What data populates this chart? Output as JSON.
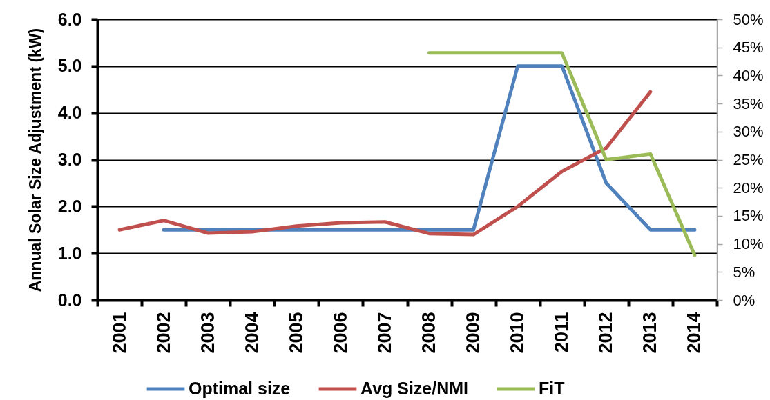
{
  "chart_data": {
    "type": "line",
    "ylabel": "Annual Solar Size Adjustment (kW)",
    "categories": [
      "2001",
      "2002",
      "2003",
      "2004",
      "2005",
      "2006",
      "2007",
      "2008",
      "2009",
      "2010",
      "2011",
      "2012",
      "2013",
      "2014"
    ],
    "series": [
      {
        "name": "Optimal size",
        "color": "#4f81bd",
        "values": [
          null,
          1.5,
          1.5,
          1.5,
          1.5,
          1.5,
          1.5,
          1.5,
          1.5,
          5.0,
          5.0,
          2.5,
          1.5,
          1.5
        ]
      },
      {
        "name": "Avg Size/NMI",
        "color": "#c0504d",
        "values": [
          1.5,
          1.7,
          1.43,
          1.46,
          1.58,
          1.65,
          1.67,
          1.42,
          1.4,
          2.0,
          2.75,
          3.25,
          4.45,
          null
        ]
      },
      {
        "name": "FiT",
        "color": "#9bbb59",
        "axis": "y2",
        "values": [
          null,
          null,
          null,
          null,
          null,
          null,
          null,
          44,
          44,
          44,
          44,
          25,
          26,
          8
        ]
      }
    ],
    "ylim": [
      0,
      6
    ],
    "yticks": [
      {
        "value": 0,
        "label": "0.0"
      },
      {
        "value": 1,
        "label": "1.0"
      },
      {
        "value": 2,
        "label": "2.0"
      },
      {
        "value": 3,
        "label": "3.0"
      },
      {
        "value": 4,
        "label": "4.0"
      },
      {
        "value": 5,
        "label": "5.0"
      },
      {
        "value": 6,
        "label": "6.0"
      }
    ],
    "y2lim": [
      0,
      50
    ],
    "y2ticks": [
      {
        "value": 0,
        "label": "0%"
      },
      {
        "value": 5,
        "label": "5%"
      },
      {
        "value": 10,
        "label": "10%"
      },
      {
        "value": 15,
        "label": "15%"
      },
      {
        "value": 20,
        "label": "20%"
      },
      {
        "value": 25,
        "label": "25%"
      },
      {
        "value": 30,
        "label": "30%"
      },
      {
        "value": 35,
        "label": "35%"
      },
      {
        "value": 40,
        "label": "40%"
      },
      {
        "value": 45,
        "label": "45%"
      },
      {
        "value": 50,
        "label": "50%"
      }
    ],
    "grid": "y",
    "legend": "bottom",
    "marker": "none",
    "line_style": "solid"
  }
}
